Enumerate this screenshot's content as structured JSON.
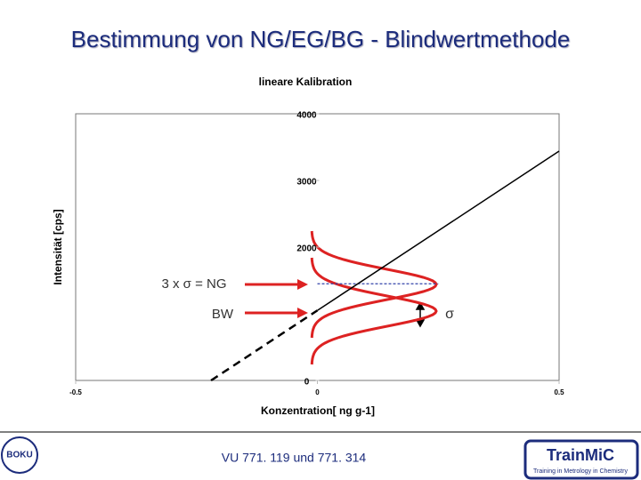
{
  "slide": {
    "title": "Bestimmung von NG/EG/BG - Blindwertmethode",
    "footer": "VU 771. 119 und 771. 314",
    "logos": [
      "BOKU",
      "TrainMiC",
      "Training in Metrology in Chemistry"
    ]
  },
  "chart_data": {
    "type": "line",
    "title": "lineare Kalibration",
    "x_label": "Konzentration[ ng g-1]",
    "y_label": "Intensität [cps]",
    "series": [
      {
        "color": "#000000",
        "dashed": true,
        "x": [
          -0.22,
          0
        ],
        "values": [
          0,
          1050
        ]
      },
      {
        "color": "#000000",
        "dashed": false,
        "x": [
          0,
          0.5
        ],
        "values": [
          1050,
          3440
        ]
      }
    ],
    "hlines": [
      {
        "value": 1450,
        "color": "#3344aa",
        "x": [
          0,
          0.25
        ]
      }
    ],
    "annotations": [
      "3 x σ = NG",
      "BW",
      "σ"
    ],
    "xlim": [
      -0.5,
      0.5
    ],
    "xticks": [
      -0.5,
      0,
      0.5
    ],
    "ylim": [
      0,
      4000
    ],
    "yticks": [
      0,
      2000,
      3000,
      4000
    ]
  }
}
